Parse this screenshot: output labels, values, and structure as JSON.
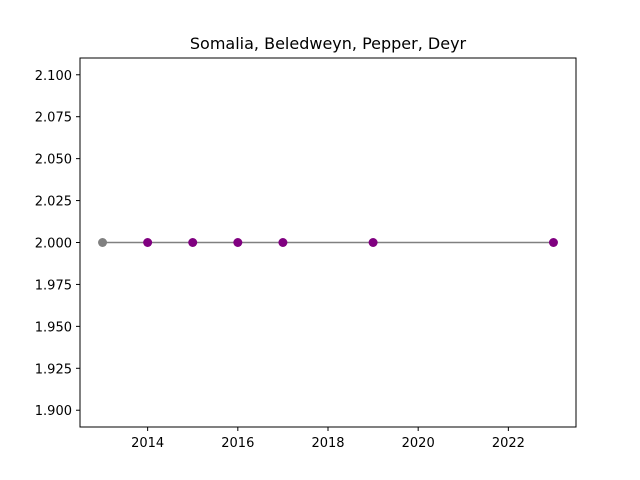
{
  "chart_data": {
    "type": "line",
    "title": "Somalia, Beledweyn, Pepper, Deyr",
    "xlabel": "",
    "ylabel": "",
    "x": [
      2013,
      2014,
      2015,
      2016,
      2017,
      2019,
      2023
    ],
    "series": [
      {
        "values": [
          2.0,
          2.0,
          2.0,
          2.0,
          2.0,
          2.0,
          2.0
        ],
        "line_color": "#808080",
        "marker_colors": [
          "#808080",
          "#800080",
          "#800080",
          "#800080",
          "#800080",
          "#800080",
          "#800080"
        ]
      }
    ],
    "xlim": [
      2012.5,
      2023.5
    ],
    "ylim": [
      1.89,
      2.11
    ],
    "xticks": [
      2014,
      2016,
      2018,
      2020,
      2022
    ],
    "xtick_labels": [
      "2014",
      "2016",
      "2018",
      "2020",
      "2022"
    ],
    "yticks": [
      1.9,
      1.925,
      1.95,
      1.975,
      2.0,
      2.025,
      2.05,
      2.075,
      2.1
    ],
    "ytick_labels": [
      "1.900",
      "1.925",
      "1.950",
      "1.975",
      "2.000",
      "2.025",
      "2.050",
      "2.075",
      "2.100"
    ],
    "grid": false,
    "legend": "none"
  }
}
